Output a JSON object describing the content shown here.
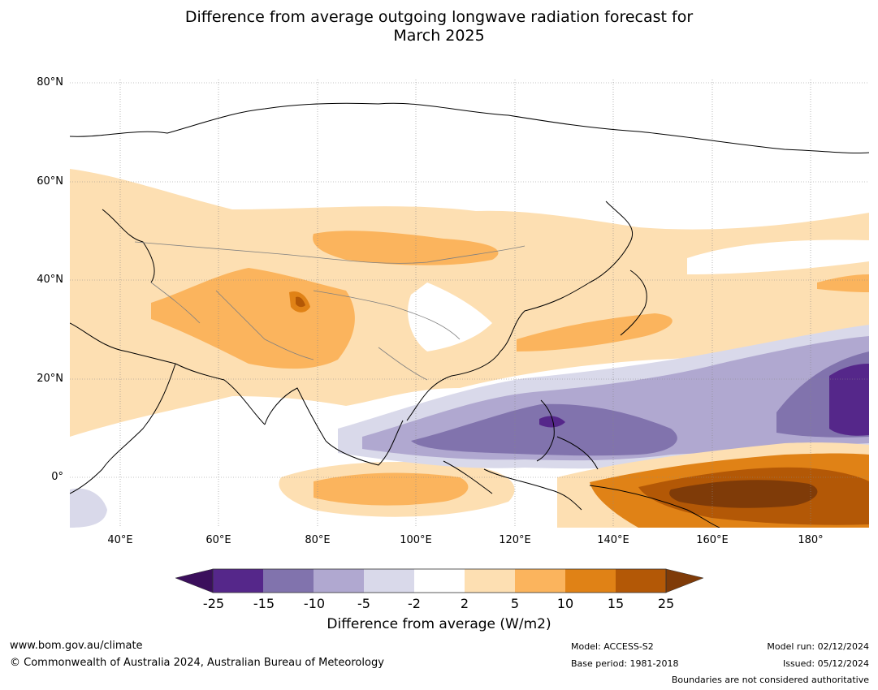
{
  "title_line1": "Difference from average outgoing longwave radiation forecast for",
  "title_line2": "March 2025",
  "map": {
    "lat_labels": [
      "80°N",
      "60°N",
      "40°N",
      "20°N",
      "0°"
    ],
    "lon_labels": [
      "40°E",
      "60°E",
      "80°E",
      "100°E",
      "120°E",
      "140°E",
      "160°E",
      "180°"
    ],
    "anomaly_palette": {
      "minus25": "#3b0f5c",
      "minus15": "#55278a",
      "minus10": "#8173ad",
      "minus5": "#b0a8d0",
      "minus2": "#d9d9ea",
      "neutral": "#ffffff",
      "plus2": "#fddfb2",
      "plus5": "#fbb45d",
      "plus10": "#e08216",
      "plus15": "#b35806",
      "plus25": "#7f3b08"
    },
    "coastline_color": "#000000",
    "border_color": "#808080",
    "gridline_color": "#888888"
  },
  "colorbar": {
    "ticks": [
      "-25",
      "-15",
      "-10",
      "-5",
      "-2",
      "2",
      "5",
      "10",
      "15",
      "25"
    ],
    "title": "Difference from average (W/m2)"
  },
  "footer": {
    "website": "www.bom.gov.au/climate",
    "copyright": "© Commonwealth of Australia 2024, Australian Bureau of Meteorology",
    "model": "Model: ACCESS-S2",
    "base_period": "Base period: 1981-2018",
    "model_run": "Model run: 02/12/2024",
    "issued": "Issued: 05/12/2024",
    "disclaimer": "Boundaries are not considered authoritative"
  }
}
